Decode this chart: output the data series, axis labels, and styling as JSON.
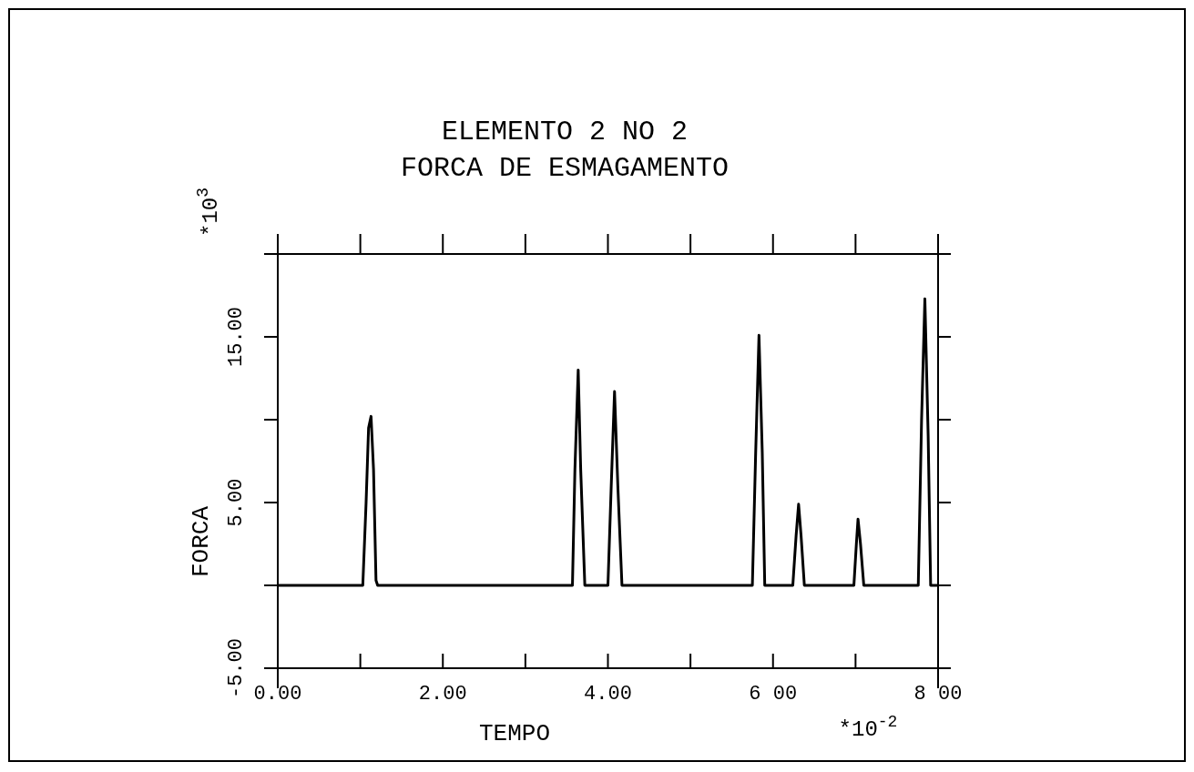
{
  "chart_data": {
    "type": "line",
    "title": "ELEMENTO  2  NO 2",
    "subtitle": "FORCA DE ESMAGAMENTO",
    "xlabel": "TEMPO",
    "ylabel": "FORCA",
    "annotations": [
      "*10$^{3}$",
      "*10$^{-2}$"
    ],
    "series": [
      {
        "color": "#000000",
        "x": [
          0,
          1.03,
          1.07,
          1.1,
          1.13,
          1.16,
          1.19,
          1.21,
          3.57,
          3.6,
          3.64,
          3.67,
          3.72,
          4.0,
          4.04,
          4.08,
          4.12,
          4.17,
          5.75,
          5.79,
          5.83,
          5.87,
          5.9,
          6.24,
          6.28,
          6.31,
          6.34,
          6.38,
          6.98,
          7.01,
          7.03,
          7.06,
          7.1,
          7.76,
          7.8,
          7.84,
          7.88,
          7.91,
          8
        ],
        "values": [
          0,
          0,
          5,
          9.5,
          10.2,
          7,
          0.3,
          0,
          0,
          7,
          13,
          7,
          0,
          0,
          6,
          11.7,
          6,
          0,
          0,
          8,
          15.1,
          8,
          0,
          0,
          3,
          4.9,
          3,
          0,
          0,
          2.5,
          4,
          2.5,
          0,
          0,
          10,
          17.3,
          9,
          0,
          0
        ]
      }
    ],
    "xlim": [
      0,
      8
    ],
    "xticks": [
      {
        "value": 0,
        "label": "0.00"
      },
      {
        "value": 1,
        "label": null
      },
      {
        "value": 2,
        "label": "2.00"
      },
      {
        "value": 3,
        "label": null
      },
      {
        "value": 4,
        "label": "4.00"
      },
      {
        "value": 5,
        "label": null
      },
      {
        "value": 6,
        "label": "6 00"
      },
      {
        "value": 7,
        "label": null
      },
      {
        "value": 8,
        "label": "8 00"
      }
    ],
    "ylim": [
      -5,
      20
    ],
    "yticks": [
      {
        "value": -5,
        "label": "-5.00"
      },
      {
        "value": 0,
        "label": null
      },
      {
        "value": 5,
        "label": "5.00"
      },
      {
        "value": 10,
        "label": null
      },
      {
        "value": 15,
        "label": "15.00"
      },
      {
        "value": 20,
        "label": null
      }
    ],
    "grid": false,
    "marker": "none",
    "line_style": "solid"
  }
}
